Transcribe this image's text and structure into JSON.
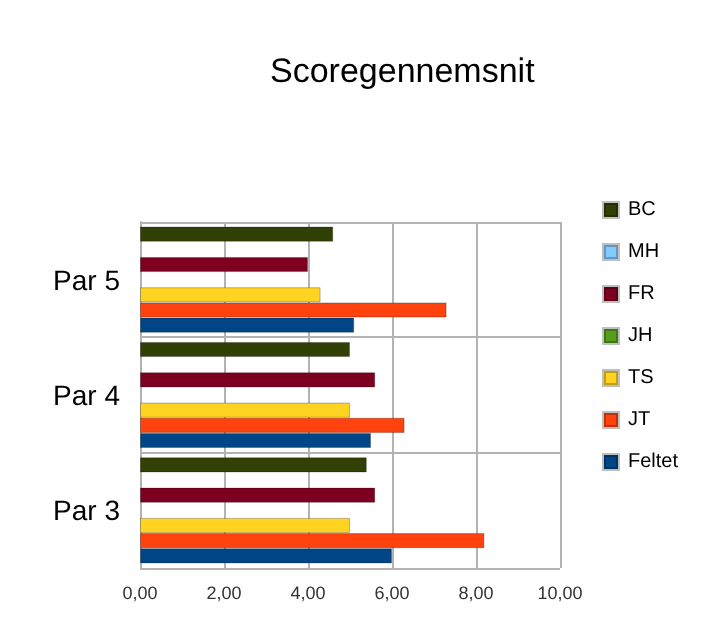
{
  "chart_data": {
    "type": "bar",
    "orientation": "horizontal",
    "title": "Scoregennemsnit",
    "categories": [
      "Par 5",
      "Par 4",
      "Par 3"
    ],
    "series": [
      {
        "name": "BC",
        "color": "#314004",
        "values": [
          4.6,
          5.0,
          5.4
        ]
      },
      {
        "name": "MH",
        "color": "#83caff",
        "values": [
          null,
          null,
          null
        ]
      },
      {
        "name": "FR",
        "color": "#7e0021",
        "values": [
          4.0,
          5.6,
          5.6
        ]
      },
      {
        "name": "JH",
        "color": "#579d1c",
        "values": [
          null,
          null,
          null
        ]
      },
      {
        "name": "TS",
        "color": "#ffd320",
        "values": [
          4.3,
          5.0,
          5.0
        ]
      },
      {
        "name": "JT",
        "color": "#ff420e",
        "values": [
          7.3,
          6.3,
          8.2
        ]
      },
      {
        "name": "Feltet",
        "color": "#004586",
        "values": [
          5.1,
          5.5,
          6.0
        ]
      }
    ],
    "xlim": [
      0,
      10
    ],
    "xticks": [
      {
        "value": 0,
        "label": "0,00"
      },
      {
        "value": 2,
        "label": "2,00"
      },
      {
        "value": 4,
        "label": "4,00"
      },
      {
        "value": 6,
        "label": "6,00"
      },
      {
        "value": 8,
        "label": "8,00"
      },
      {
        "value": 10,
        "label": "10,00"
      }
    ],
    "grid": true,
    "legend": "right"
  }
}
